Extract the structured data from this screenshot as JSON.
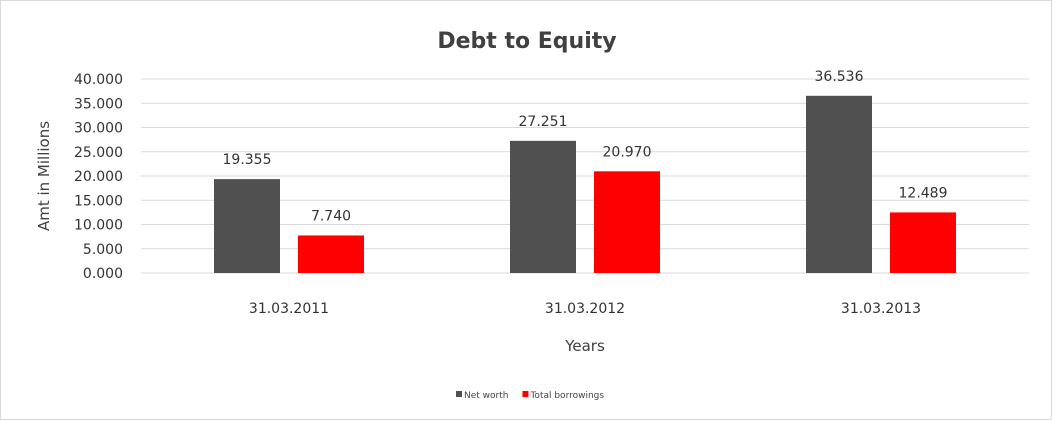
{
  "chart_data": {
    "type": "bar",
    "title": "Debt to Equity",
    "xlabel": "Years",
    "ylabel": "Amt in Millions",
    "categories": [
      "31.03.2011",
      "31.03.2012",
      "31.03.2013"
    ],
    "series": [
      {
        "name": "Net worth",
        "values": [
          19.355,
          27.251,
          36.536
        ],
        "labels": [
          "19.355",
          "27.251",
          "36.536"
        ],
        "color": "#505050"
      },
      {
        "name": "Total borrowings",
        "values": [
          7.74,
          20.97,
          12.489
        ],
        "labels": [
          "7.740",
          "20.970",
          "12.489"
        ],
        "color": "#ff0000"
      }
    ],
    "ylim": [
      0,
      40
    ],
    "yticks": [
      "0.000",
      "5.000",
      "10.000",
      "15.000",
      "20.000",
      "25.000",
      "30.000",
      "35.000",
      "40.000"
    ],
    "grid": true,
    "legend": "bottom"
  }
}
